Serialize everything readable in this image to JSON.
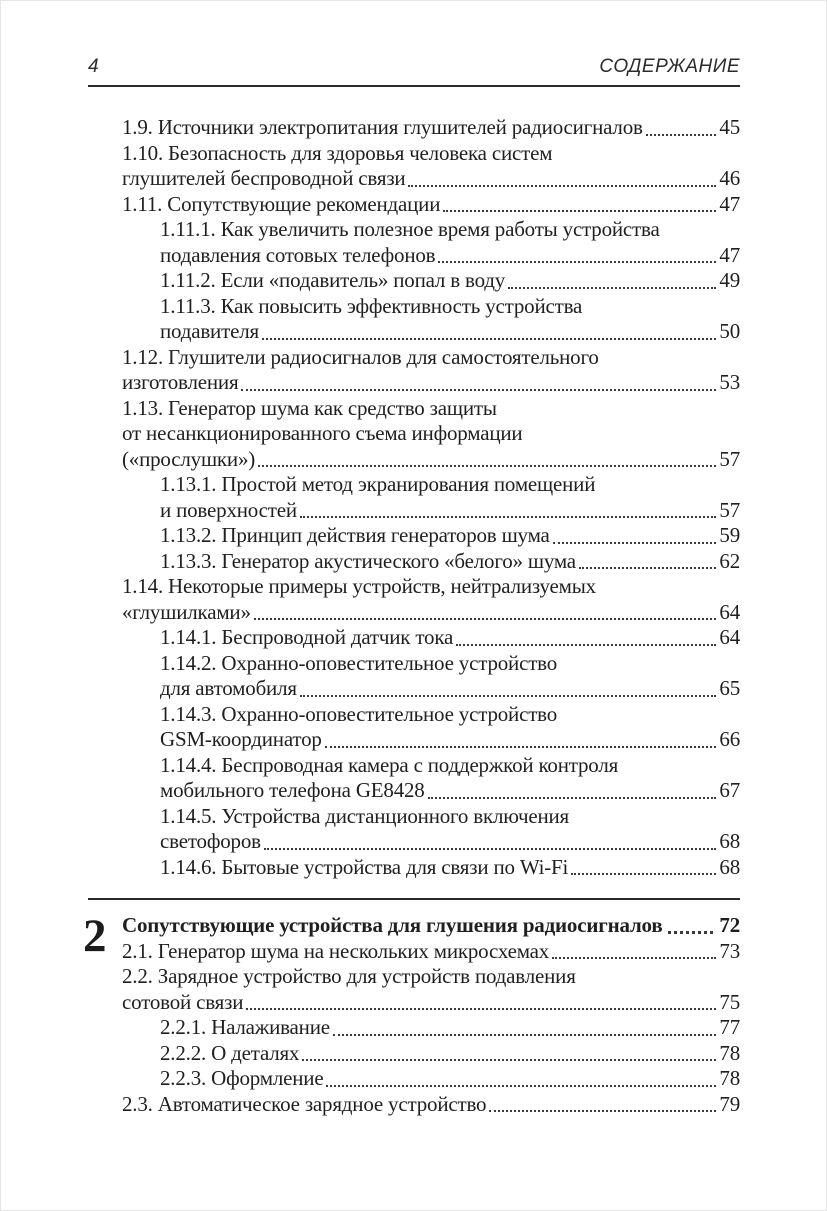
{
  "header": {
    "page_number": "4",
    "title": "СОДЕРЖАНИЕ"
  },
  "toc": {
    "chapter1": {
      "rows": [
        {
          "indent": 1,
          "text": "1.9. Источники электропитания глушителей радиосигналов",
          "page": "45"
        },
        {
          "indent": 1,
          "text": "1.10. Безопасность для здоровья человека систем",
          "page": ""
        },
        {
          "indent": 1,
          "text": "глушителей беспроводной связи",
          "page": "46"
        },
        {
          "indent": 1,
          "text": "1.11. Сопутствующие рекомендации",
          "page": "47"
        },
        {
          "indent": 2,
          "text": "1.11.1. Как увеличить полезное время работы устройства",
          "page": ""
        },
        {
          "indent": 2,
          "text": "подавления сотовых телефонов",
          "page": "47"
        },
        {
          "indent": 2,
          "text": "1.11.2. Если «подавитель» попал в воду",
          "page": "49"
        },
        {
          "indent": 2,
          "text": "1.11.3. Как повысить эффективность устройства",
          "page": ""
        },
        {
          "indent": 2,
          "text": "подавителя",
          "page": "50"
        },
        {
          "indent": 1,
          "text": "1.12. Глушители радиосигналов для самостоятельного",
          "page": ""
        },
        {
          "indent": 1,
          "text": "изготовления",
          "page": "53"
        },
        {
          "indent": 1,
          "text": "1.13. Генератор шума как средство защиты",
          "page": ""
        },
        {
          "indent": 1,
          "text": "от несанкционированного съема информации",
          "page": ""
        },
        {
          "indent": 1,
          "text": "(«прослушки»)",
          "page": "57"
        },
        {
          "indent": 2,
          "text": "1.13.1. Простой метод экранирования помещений",
          "page": ""
        },
        {
          "indent": 2,
          "text": "и поверхностей",
          "page": "57"
        },
        {
          "indent": 2,
          "text": "1.13.2. Принцип действия генераторов шума",
          "page": "59"
        },
        {
          "indent": 2,
          "text": "1.13.3. Генератор акустического «белого» шума",
          "page": "62"
        },
        {
          "indent": 1,
          "text": "1.14. Некоторые примеры устройств, нейтрализуемых",
          "page": ""
        },
        {
          "indent": 1,
          "text": "«глушилками»",
          "page": "64"
        },
        {
          "indent": 2,
          "text": "1.14.1. Беспроводной датчик тока",
          "page": "64"
        },
        {
          "indent": 2,
          "text": "1.14.2. Охранно-оповестительное устройство",
          "page": ""
        },
        {
          "indent": 2,
          "text": "для автомобиля",
          "page": "65"
        },
        {
          "indent": 2,
          "text": "1.14.3. Охранно-оповестительное устройство",
          "page": ""
        },
        {
          "indent": 2,
          "text": "GSM-координатор",
          "page": "66"
        },
        {
          "indent": 2,
          "text": "1.14.4. Беспроводная камера с поддержкой контроля",
          "page": ""
        },
        {
          "indent": 2,
          "text": "мобильного телефона GE8428",
          "page": "67"
        },
        {
          "indent": 2,
          "text": "1.14.5. Устройства дистанционного включения",
          "page": ""
        },
        {
          "indent": 2,
          "text": "светофоров",
          "page": "68"
        },
        {
          "indent": 2,
          "text": "1.14.6. Бытовые устройства для связи по Wi-Fi",
          "page": "68"
        }
      ]
    },
    "chapter2": {
      "number": "2",
      "rows": [
        {
          "indent": 1,
          "bold": true,
          "text": "Сопутствующие устройства для глушения радиосигналов",
          "page": "72"
        },
        {
          "indent": 1,
          "text": "2.1. Генератор шума на нескольких микросхемах",
          "page": "73"
        },
        {
          "indent": 1,
          "text": "2.2. Зарядное устройство для устройств подавления",
          "page": ""
        },
        {
          "indent": 1,
          "text": "сотовой связи",
          "page": "75"
        },
        {
          "indent": 2,
          "text": "2.2.1. Налаживание",
          "page": "77"
        },
        {
          "indent": 2,
          "text": "2.2.2. О деталях",
          "page": "78"
        },
        {
          "indent": 2,
          "text": "2.2.3. Оформление",
          "page": "78"
        },
        {
          "indent": 1,
          "text": "2.3. Автоматическое зарядное устройство",
          "page": "79"
        }
      ]
    }
  },
  "colors": {
    "text": "#1f1f1f",
    "rule": "#2a2a2a",
    "leader_dots": "#3b3b3b",
    "background": "#ffffff"
  }
}
